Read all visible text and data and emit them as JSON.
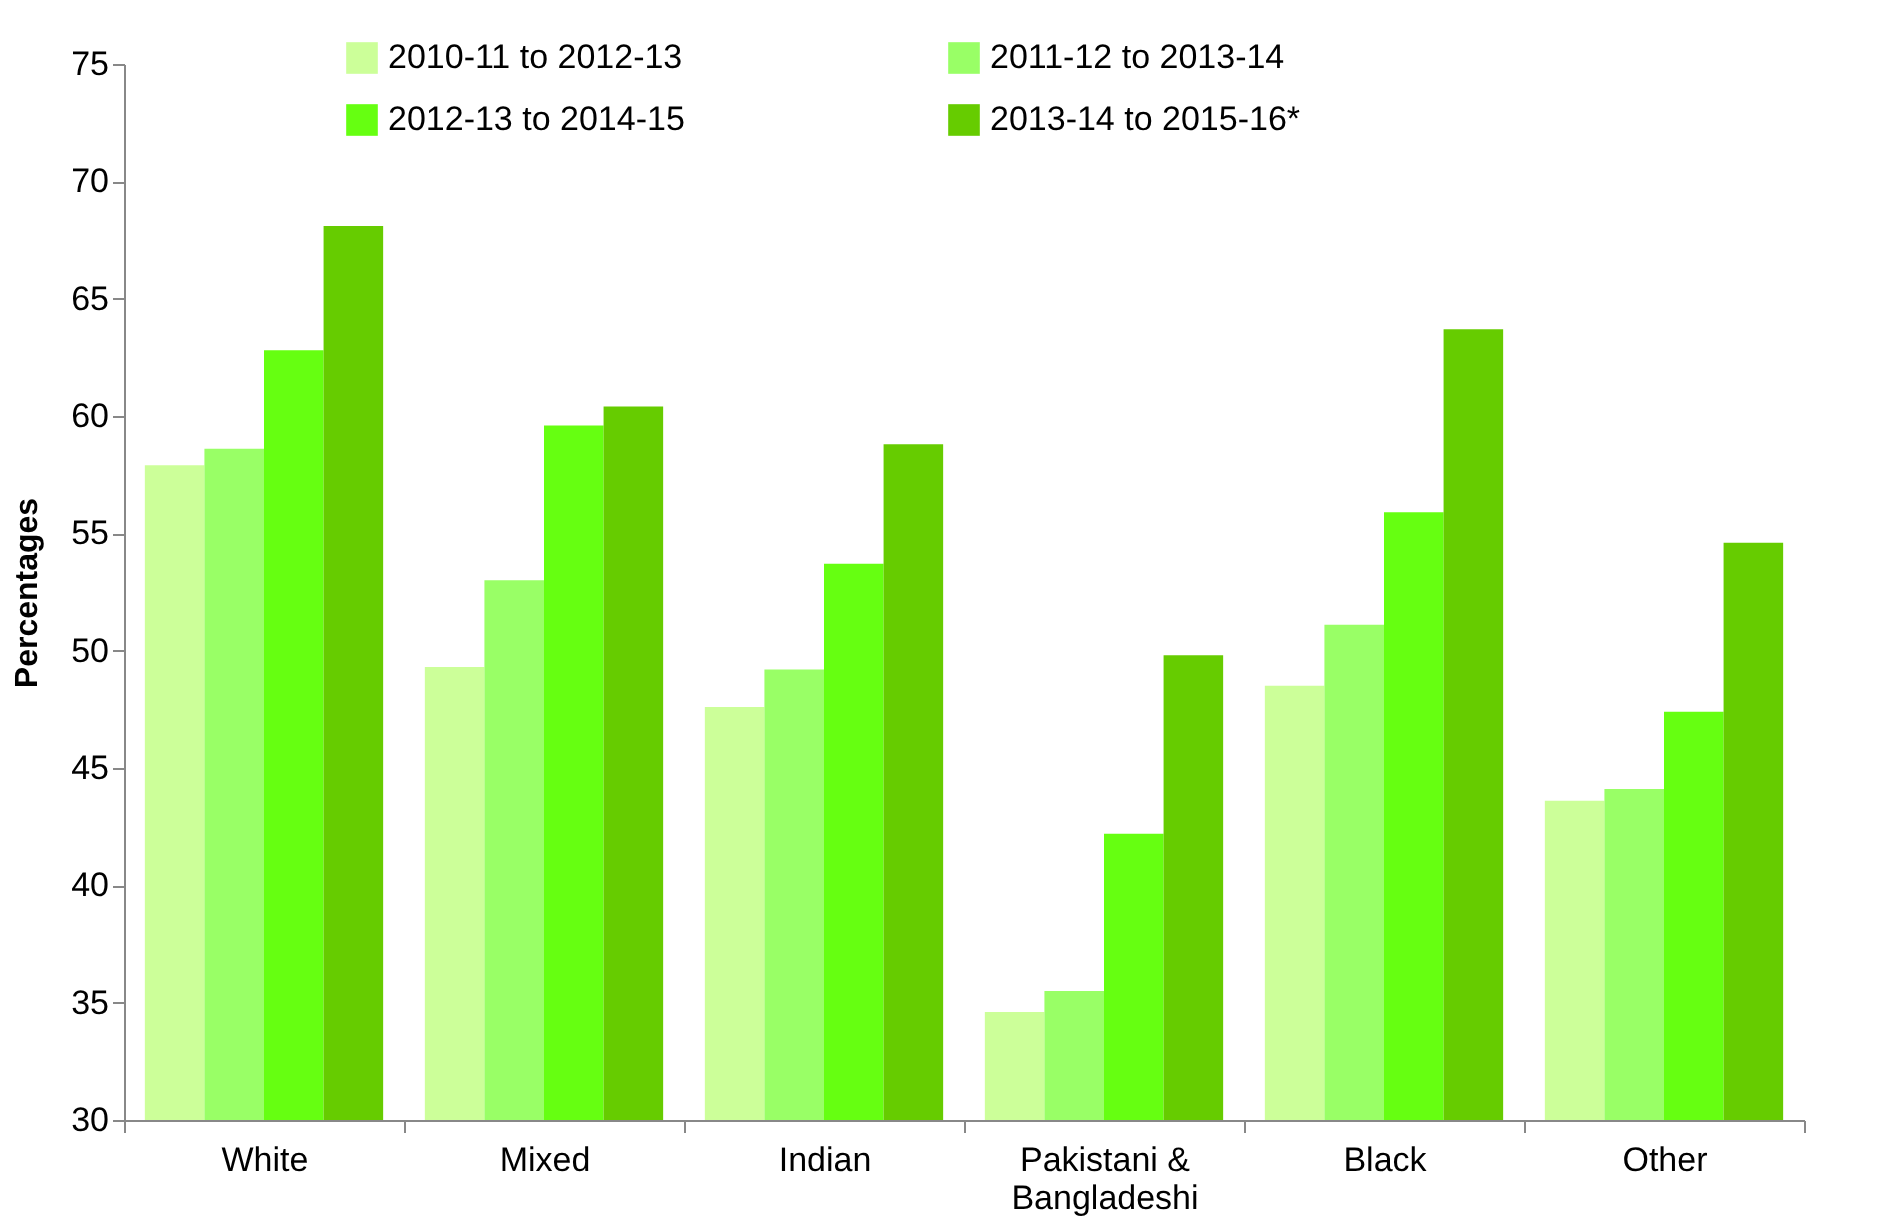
{
  "chart_data": {
    "type": "bar",
    "ylabel": "Percentages",
    "categories": [
      "White",
      "Mixed",
      "Indian",
      "Pakistani & Bangladeshi",
      "Black",
      "Other"
    ],
    "series": [
      {
        "name": "2010-11 to 2012-13",
        "color": "#ccff99",
        "values": [
          57.9,
          49.3,
          47.6,
          34.6,
          48.5,
          43.6
        ]
      },
      {
        "name": "2011-12 to 2013-14",
        "color": "#99ff66",
        "values": [
          58.6,
          53.0,
          49.2,
          35.5,
          51.1,
          44.1
        ]
      },
      {
        "name": "2012-13 to 2014-15",
        "color": "#66ff11",
        "values": [
          62.8,
          59.6,
          53.7,
          42.2,
          55.9,
          47.4
        ]
      },
      {
        "name": "2013-14 to 2015-16*",
        "color": "#66cc00",
        "values": [
          68.1,
          60.4,
          58.8,
          49.8,
          63.7,
          54.6
        ]
      }
    ],
    "ylim": [
      30,
      75
    ],
    "yticks": [
      30,
      35,
      40,
      45,
      50,
      55,
      60,
      65,
      70,
      75
    ],
    "grid": false,
    "legend": "top"
  }
}
